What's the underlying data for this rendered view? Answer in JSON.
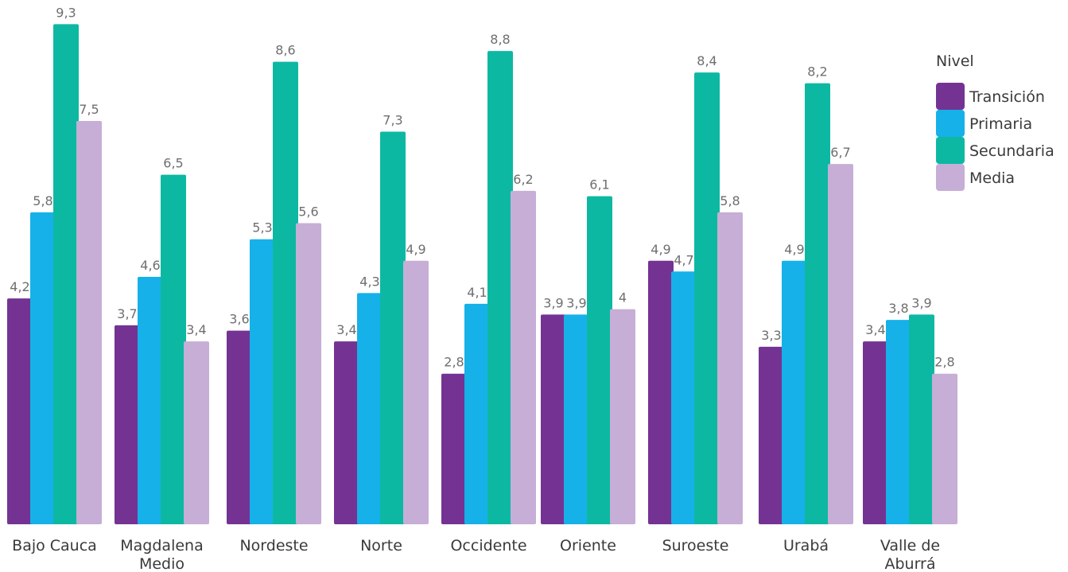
{
  "chart_data": {
    "type": "bar",
    "title": "",
    "xlabel": "",
    "ylabel": "",
    "ylim": [
      0,
      10
    ],
    "grid": false,
    "legend": {
      "title": "Nivel",
      "placement": "top-right"
    },
    "categories": [
      [
        "Bajo Cauca"
      ],
      [
        "Magdalena",
        "Medio"
      ],
      [
        "Nordeste"
      ],
      [
        "Norte"
      ],
      [
        "Occidente"
      ],
      [
        "Oriente"
      ],
      [
        "Suroeste"
      ],
      [
        "Urabá"
      ],
      [
        "Valle de",
        "Aburrá"
      ]
    ],
    "series": [
      {
        "name": "Transición",
        "color": "#743393",
        "values": [
          4.2,
          3.7,
          3.6,
          3.4,
          2.8,
          3.9,
          4.9,
          3.3,
          3.4
        ],
        "labels": [
          "4,2",
          "3,7",
          "3,6",
          "3,4",
          "2,8",
          "3,9",
          "4,9",
          "3,3",
          "3,4"
        ]
      },
      {
        "name": "Primaria",
        "color": "#16b1e8",
        "values": [
          5.8,
          4.6,
          5.3,
          4.3,
          4.1,
          3.9,
          4.7,
          4.9,
          3.8
        ],
        "labels": [
          "5,8",
          "4,6",
          "5,3",
          "4,3",
          "4,1",
          "3,9",
          "4,7",
          "4,9",
          "3,8"
        ]
      },
      {
        "name": "Secundaria",
        "color": "#0db8a3",
        "values": [
          9.3,
          6.5,
          8.6,
          7.3,
          8.8,
          6.1,
          8.4,
          8.2,
          3.9
        ],
        "labels": [
          "9,3",
          "6,5",
          "8,6",
          "7,3",
          "8,8",
          "6,1",
          "8,4",
          "8,2",
          "3,9"
        ]
      },
      {
        "name": "Media",
        "color": "#c6aed6",
        "values": [
          7.5,
          3.4,
          5.6,
          4.9,
          6.2,
          4.0,
          5.8,
          6.7,
          2.8
        ],
        "labels": [
          "7,5",
          "3,4",
          "5,6",
          "4,9",
          "6,2",
          "4",
          "5,8",
          "6,7",
          "2,8"
        ]
      }
    ]
  }
}
